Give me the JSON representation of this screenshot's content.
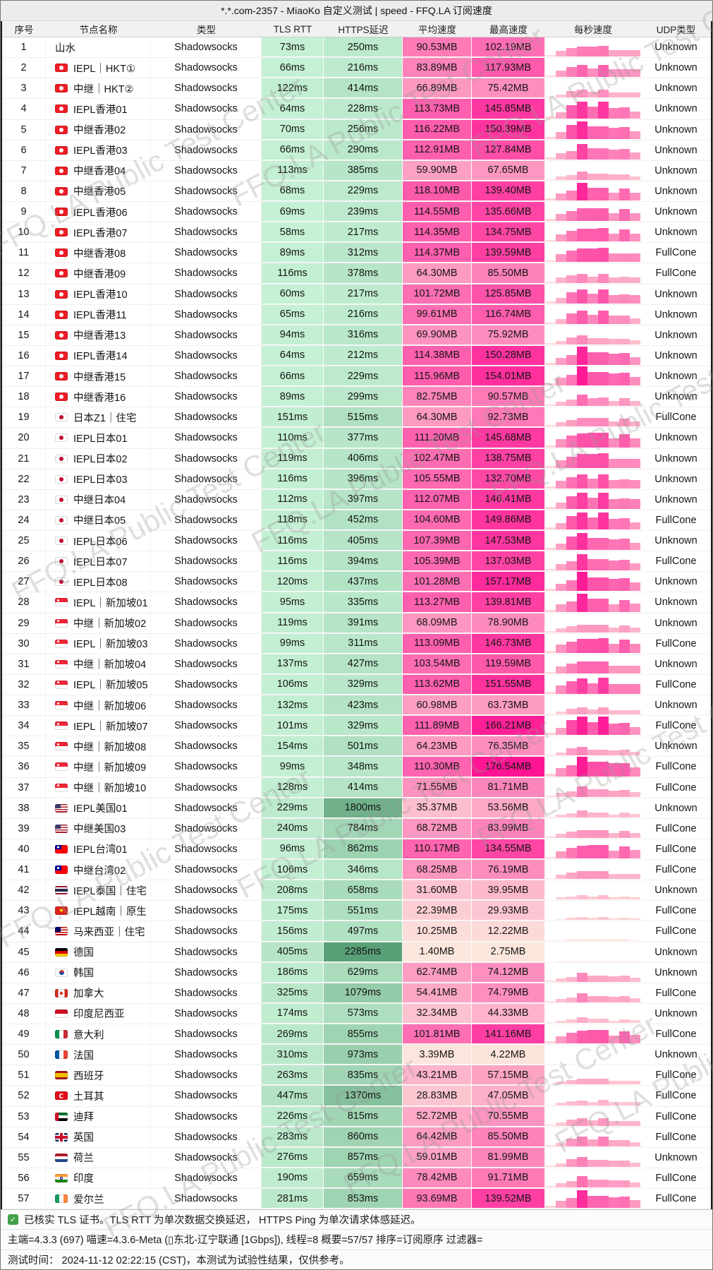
{
  "window": {
    "title": "*.*.com-2357 - MiaoKo 自定义测试 | speed - FFQ.LA 订阅速度"
  },
  "watermark": {
    "text": "FFQ.LA Public Test Center"
  },
  "colors": {
    "green_low": "#C6F1D5",
    "green_high": "#569D73",
    "pink_low": "#FCE9DD",
    "pink_high": "#FF1494",
    "title_bg": "#ECECEC",
    "header_bg": "#F1F1F1",
    "check_green": "#43A047",
    "table_border": "#1A1A1A"
  },
  "table": {
    "columns": [
      "序号",
      "节点名称",
      "类型",
      "TLS RTT",
      "HTTPS延迟",
      "平均速度",
      "最高速度",
      "每秒速度",
      "UDP类型"
    ],
    "rows": [
      {
        "no": 1,
        "flag": "",
        "name": "山水",
        "type": "Shadowsocks",
        "tls": "73ms",
        "https": "250ms",
        "avg": "90.53MB",
        "max": "102.19MB",
        "udp": "Unknown"
      },
      {
        "no": 2,
        "flag": "hk",
        "name": "IEPL｜HKT①",
        "type": "Shadowsocks",
        "tls": "66ms",
        "https": "216ms",
        "avg": "83.89MB",
        "max": "117.93MB",
        "udp": "Unknown"
      },
      {
        "no": 3,
        "flag": "hk",
        "name": "中继｜HKT②",
        "type": "Shadowsocks",
        "tls": "122ms",
        "https": "414ms",
        "avg": "66.89MB",
        "max": "75.42MB",
        "udp": "Unknown"
      },
      {
        "no": 4,
        "flag": "hk",
        "name": "IEPL香港01",
        "type": "Shadowsocks",
        "tls": "64ms",
        "https": "228ms",
        "avg": "113.73MB",
        "max": "145.85MB",
        "udp": "Unknown"
      },
      {
        "no": 5,
        "flag": "hk",
        "name": "中继香港02",
        "type": "Shadowsocks",
        "tls": "70ms",
        "https": "256ms",
        "avg": "116.22MB",
        "max": "150.39MB",
        "udp": "Unknown"
      },
      {
        "no": 6,
        "flag": "hk",
        "name": "IEPL香港03",
        "type": "Shadowsocks",
        "tls": "66ms",
        "https": "290ms",
        "avg": "112.91MB",
        "max": "127.84MB",
        "udp": "Unknown"
      },
      {
        "no": 7,
        "flag": "hk",
        "name": "中继香港04",
        "type": "Shadowsocks",
        "tls": "113ms",
        "https": "385ms",
        "avg": "59.90MB",
        "max": "67.65MB",
        "udp": "Unknown"
      },
      {
        "no": 8,
        "flag": "hk",
        "name": "中继香港05",
        "type": "Shadowsocks",
        "tls": "68ms",
        "https": "229ms",
        "avg": "118.10MB",
        "max": "139.40MB",
        "udp": "Unknown"
      },
      {
        "no": 9,
        "flag": "hk",
        "name": "IEPL香港06",
        "type": "Shadowsocks",
        "tls": "69ms",
        "https": "239ms",
        "avg": "114.55MB",
        "max": "135.66MB",
        "udp": "Unknown"
      },
      {
        "no": 10,
        "flag": "hk",
        "name": "IEPL香港07",
        "type": "Shadowsocks",
        "tls": "58ms",
        "https": "217ms",
        "avg": "114.35MB",
        "max": "134.75MB",
        "udp": "Unknown"
      },
      {
        "no": 11,
        "flag": "hk",
        "name": "中继香港08",
        "type": "Shadowsocks",
        "tls": "89ms",
        "https": "312ms",
        "avg": "114.37MB",
        "max": "139.59MB",
        "udp": "FullCone"
      },
      {
        "no": 12,
        "flag": "hk",
        "name": "中继香港09",
        "type": "Shadowsocks",
        "tls": "116ms",
        "https": "378ms",
        "avg": "64.30MB",
        "max": "85.50MB",
        "udp": "FullCone"
      },
      {
        "no": 13,
        "flag": "hk",
        "name": "IEPL香港10",
        "type": "Shadowsocks",
        "tls": "60ms",
        "https": "217ms",
        "avg": "101.72MB",
        "max": "125.85MB",
        "udp": "Unknown"
      },
      {
        "no": 14,
        "flag": "hk",
        "name": "IEPL香港11",
        "type": "Shadowsocks",
        "tls": "65ms",
        "https": "216ms",
        "avg": "99.61MB",
        "max": "116.74MB",
        "udp": "Unknown"
      },
      {
        "no": 15,
        "flag": "hk",
        "name": "中继香港13",
        "type": "Shadowsocks",
        "tls": "94ms",
        "https": "316ms",
        "avg": "69.90MB",
        "max": "75.92MB",
        "udp": "Unknown"
      },
      {
        "no": 16,
        "flag": "hk",
        "name": "IEPL香港14",
        "type": "Shadowsocks",
        "tls": "64ms",
        "https": "212ms",
        "avg": "114.38MB",
        "max": "150.28MB",
        "udp": "Unknown"
      },
      {
        "no": 17,
        "flag": "hk",
        "name": "中继香港15",
        "type": "Shadowsocks",
        "tls": "66ms",
        "https": "229ms",
        "avg": "115.96MB",
        "max": "154.01MB",
        "udp": "Unknown"
      },
      {
        "no": 18,
        "flag": "hk",
        "name": "中继香港16",
        "type": "Shadowsocks",
        "tls": "89ms",
        "https": "299ms",
        "avg": "82.75MB",
        "max": "90.57MB",
        "udp": "Unknown"
      },
      {
        "no": 19,
        "flag": "jp",
        "name": "日本Z1｜住宅",
        "type": "Shadowsocks",
        "tls": "151ms",
        "https": "515ms",
        "avg": "64.30MB",
        "max": "92.73MB",
        "udp": "FullCone"
      },
      {
        "no": 20,
        "flag": "jp",
        "name": "IEPL日本01",
        "type": "Shadowsocks",
        "tls": "110ms",
        "https": "377ms",
        "avg": "111.20MB",
        "max": "145.68MB",
        "udp": "Unknown"
      },
      {
        "no": 21,
        "flag": "jp",
        "name": "IEPL日本02",
        "type": "Shadowsocks",
        "tls": "119ms",
        "https": "406ms",
        "avg": "102.47MB",
        "max": "138.75MB",
        "udp": "Unknown"
      },
      {
        "no": 22,
        "flag": "jp",
        "name": "IEPL日本03",
        "type": "Shadowsocks",
        "tls": "116ms",
        "https": "396ms",
        "avg": "105.55MB",
        "max": "132.70MB",
        "udp": "Unknown"
      },
      {
        "no": 23,
        "flag": "jp",
        "name": "中继日本04",
        "type": "Shadowsocks",
        "tls": "112ms",
        "https": "397ms",
        "avg": "112.07MB",
        "max": "146.41MB",
        "udp": "Unknown"
      },
      {
        "no": 24,
        "flag": "jp",
        "name": "中继日本05",
        "type": "Shadowsocks",
        "tls": "118ms",
        "https": "452ms",
        "avg": "104.60MB",
        "max": "149.86MB",
        "udp": "FullCone"
      },
      {
        "no": 25,
        "flag": "jp",
        "name": "IEPL日本06",
        "type": "Shadowsocks",
        "tls": "116ms",
        "https": "405ms",
        "avg": "107.39MB",
        "max": "147.53MB",
        "udp": "Unknown"
      },
      {
        "no": 26,
        "flag": "jp",
        "name": "IEPL日本07",
        "type": "Shadowsocks",
        "tls": "116ms",
        "https": "394ms",
        "avg": "105.39MB",
        "max": "137.03MB",
        "udp": "FullCone"
      },
      {
        "no": 27,
        "flag": "jp",
        "name": "IEPL日本08",
        "type": "Shadowsocks",
        "tls": "120ms",
        "https": "437ms",
        "avg": "101.28MB",
        "max": "157.17MB",
        "udp": "Unknown"
      },
      {
        "no": 28,
        "flag": "sg",
        "name": "IEPL｜新加坡01",
        "type": "Shadowsocks",
        "tls": "95ms",
        "https": "335ms",
        "avg": "113.27MB",
        "max": "139.81MB",
        "udp": "Unknown"
      },
      {
        "no": 29,
        "flag": "sg",
        "name": "中继｜新加坡02",
        "type": "Shadowsocks",
        "tls": "119ms",
        "https": "391ms",
        "avg": "68.09MB",
        "max": "78.90MB",
        "udp": "Unknown"
      },
      {
        "no": 30,
        "flag": "sg",
        "name": "IEPL｜新加坡03",
        "type": "Shadowsocks",
        "tls": "99ms",
        "https": "311ms",
        "avg": "113.09MB",
        "max": "146.73MB",
        "udp": "FullCone"
      },
      {
        "no": 31,
        "flag": "sg",
        "name": "中继｜新加坡04",
        "type": "Shadowsocks",
        "tls": "137ms",
        "https": "427ms",
        "avg": "103.54MB",
        "max": "119.59MB",
        "udp": "Unknown"
      },
      {
        "no": 32,
        "flag": "sg",
        "name": "IEPL｜新加坡05",
        "type": "Shadowsocks",
        "tls": "106ms",
        "https": "329ms",
        "avg": "113.62MB",
        "max": "151.55MB",
        "udp": "FullCone"
      },
      {
        "no": 33,
        "flag": "sg",
        "name": "中继｜新加坡06",
        "type": "Shadowsocks",
        "tls": "132ms",
        "https": "423ms",
        "avg": "60.98MB",
        "max": "63.73MB",
        "udp": "Unknown"
      },
      {
        "no": 34,
        "flag": "sg",
        "name": "IEPL｜新加坡07",
        "type": "Shadowsocks",
        "tls": "101ms",
        "https": "329ms",
        "avg": "111.89MB",
        "max": "166.21MB",
        "udp": "FullCone"
      },
      {
        "no": 35,
        "flag": "sg",
        "name": "中继｜新加坡08",
        "type": "Shadowsocks",
        "tls": "154ms",
        "https": "501ms",
        "avg": "64.23MB",
        "max": "76.35MB",
        "udp": "Unknown"
      },
      {
        "no": 36,
        "flag": "sg",
        "name": "中继｜新加坡09",
        "type": "Shadowsocks",
        "tls": "99ms",
        "https": "348ms",
        "avg": "110.30MB",
        "max": "176.54MB",
        "udp": "FullCone"
      },
      {
        "no": 37,
        "flag": "sg",
        "name": "中继｜新加坡10",
        "type": "Shadowsocks",
        "tls": "128ms",
        "https": "414ms",
        "avg": "71.55MB",
        "max": "81.71MB",
        "udp": "FullCone"
      },
      {
        "no": 38,
        "flag": "us",
        "name": "IEPL美国01",
        "type": "Shadowsocks",
        "tls": "229ms",
        "https": "1800ms",
        "avg": "35.37MB",
        "max": "53.56MB",
        "udp": "Unknown"
      },
      {
        "no": 39,
        "flag": "us",
        "name": "中继美国03",
        "type": "Shadowsocks",
        "tls": "240ms",
        "https": "784ms",
        "avg": "68.72MB",
        "max": "83.99MB",
        "udp": "FullCone"
      },
      {
        "no": 40,
        "flag": "tw",
        "name": "IEPL台湾01",
        "type": "Shadowsocks",
        "tls": "96ms",
        "https": "862ms",
        "avg": "110.17MB",
        "max": "134.55MB",
        "udp": "FullCone"
      },
      {
        "no": 41,
        "flag": "tw",
        "name": "中继台湾02",
        "type": "Shadowsocks",
        "tls": "106ms",
        "https": "346ms",
        "avg": "68.25MB",
        "max": "76.19MB",
        "udp": "FullCone"
      },
      {
        "no": 42,
        "flag": "th",
        "name": "IEPL泰国｜住宅",
        "type": "Shadowsocks",
        "tls": "208ms",
        "https": "658ms",
        "avg": "31.60MB",
        "max": "39.95MB",
        "udp": "Unknown"
      },
      {
        "no": 43,
        "flag": "vn",
        "name": "IEPL越南｜原生",
        "type": "Shadowsocks",
        "tls": "175ms",
        "https": "551ms",
        "avg": "22.39MB",
        "max": "29.93MB",
        "udp": "FullCone"
      },
      {
        "no": 44,
        "flag": "my",
        "name": "马来西亚｜住宅",
        "type": "Shadowsocks",
        "tls": "156ms",
        "https": "497ms",
        "avg": "10.25MB",
        "max": "12.22MB",
        "udp": "FullCone"
      },
      {
        "no": 45,
        "flag": "de",
        "name": "德国",
        "type": "Shadowsocks",
        "tls": "405ms",
        "https": "2285ms",
        "avg": "1.40MB",
        "max": "2.75MB",
        "udp": "Unknown"
      },
      {
        "no": 46,
        "flag": "kr",
        "name": "韩国",
        "type": "Shadowsocks",
        "tls": "186ms",
        "https": "629ms",
        "avg": "62.74MB",
        "max": "74.12MB",
        "udp": "Unknown"
      },
      {
        "no": 47,
        "flag": "ca",
        "name": "加拿大",
        "type": "Shadowsocks",
        "tls": "325ms",
        "https": "1079ms",
        "avg": "54.41MB",
        "max": "74.79MB",
        "udp": "FullCone"
      },
      {
        "no": 48,
        "flag": "id",
        "name": "印度尼西亚",
        "type": "Shadowsocks",
        "tls": "174ms",
        "https": "573ms",
        "avg": "32.34MB",
        "max": "44.33MB",
        "udp": "Unknown"
      },
      {
        "no": 49,
        "flag": "it",
        "name": "意大利",
        "type": "Shadowsocks",
        "tls": "269ms",
        "https": "855ms",
        "avg": "101.81MB",
        "max": "141.16MB",
        "udp": "FullCone"
      },
      {
        "no": 50,
        "flag": "fr",
        "name": "法国",
        "type": "Shadowsocks",
        "tls": "310ms",
        "https": "973ms",
        "avg": "3.39MB",
        "max": "4.22MB",
        "udp": "Unknown"
      },
      {
        "no": 51,
        "flag": "es",
        "name": "西班牙",
        "type": "Shadowsocks",
        "tls": "263ms",
        "https": "835ms",
        "avg": "43.21MB",
        "max": "57.15MB",
        "udp": "FullCone"
      },
      {
        "no": 52,
        "flag": "tr",
        "name": "土耳其",
        "type": "Shadowsocks",
        "tls": "447ms",
        "https": "1370ms",
        "avg": "28.83MB",
        "max": "47.05MB",
        "udp": "FullCone"
      },
      {
        "no": 53,
        "flag": "ae",
        "name": "迪拜",
        "type": "Shadowsocks",
        "tls": "226ms",
        "https": "815ms",
        "avg": "52.72MB",
        "max": "70.55MB",
        "udp": "FullCone"
      },
      {
        "no": 54,
        "flag": "gb",
        "name": "英国",
        "type": "Shadowsocks",
        "tls": "283ms",
        "https": "860ms",
        "avg": "64.42MB",
        "max": "85.50MB",
        "udp": "FullCone"
      },
      {
        "no": 55,
        "flag": "nl",
        "name": "荷兰",
        "type": "Shadowsocks",
        "tls": "276ms",
        "https": "857ms",
        "avg": "59.01MB",
        "max": "81.99MB",
        "udp": "Unknown"
      },
      {
        "no": 56,
        "flag": "in",
        "name": "印度",
        "type": "Shadowsocks",
        "tls": "190ms",
        "https": "659ms",
        "avg": "78.42MB",
        "max": "91.71MB",
        "udp": "FullCone"
      },
      {
        "no": 57,
        "flag": "ie",
        "name": "爱尔兰",
        "type": "Shadowsocks",
        "tls": "281ms",
        "https": "853ms",
        "avg": "93.69MB",
        "max": "139.52MB",
        "udp": "FullCone"
      }
    ]
  },
  "footer": {
    "note": "已核实 TLS 证书。TLS RTT 为单次数据交换延迟， HTTPS Ping 为单次请求体感延迟。",
    "engine": "主端=4.3.3 (697) 喵速=4.3.6-Meta (▯东北-辽宁联通 [1Gbps]), 线程=8 概要=57/57 排序=订阅原序 过滤器=",
    "time": "测试时间： 2024-11-12 02:22:15 (CST)，本测试为试验性结果，仅供参考。"
  }
}
